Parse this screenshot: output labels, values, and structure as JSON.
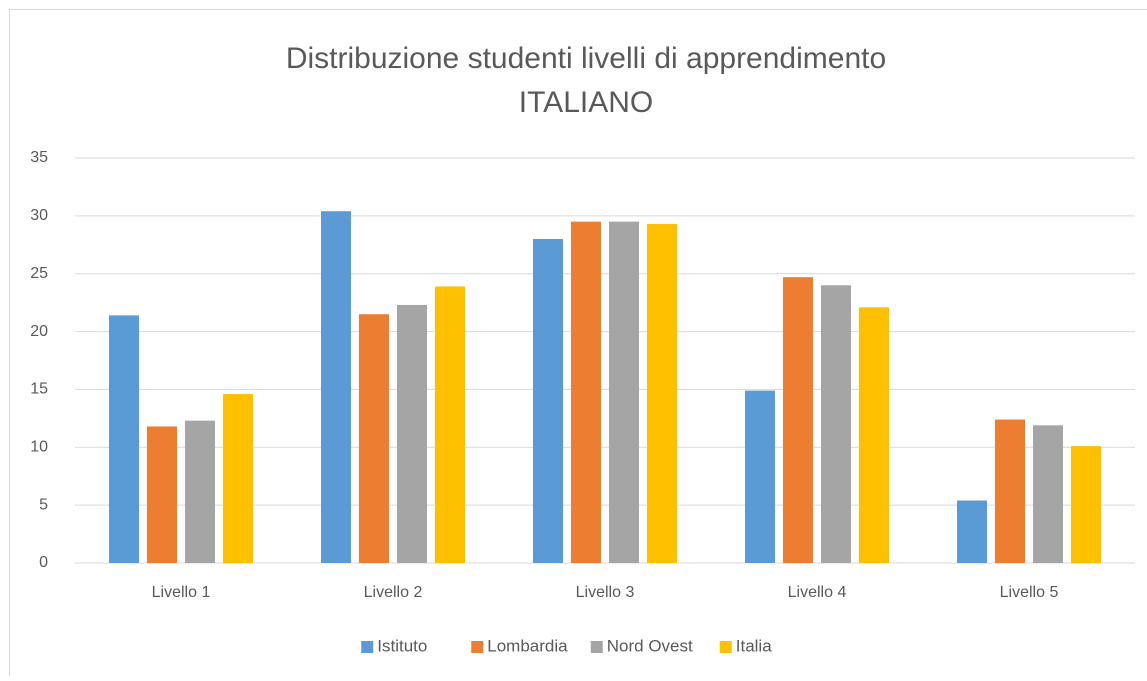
{
  "chart_data": {
    "type": "bar",
    "title": [
      "Distribuzione studenti livelli di apprendimento",
      "ITALIANO"
    ],
    "categories": [
      "Livello 1",
      "Livello 2",
      "Livello 3",
      "Livello 4",
      "Livello 5"
    ],
    "series": [
      {
        "name": "Istituto",
        "color": "#5b9bd5",
        "values": [
          21.4,
          30.4,
          28.0,
          14.9,
          5.4
        ]
      },
      {
        "name": "Lombardia",
        "color": "#ed7d31",
        "values": [
          11.8,
          21.5,
          29.5,
          24.7,
          12.4
        ]
      },
      {
        "name": "Nord Ovest",
        "color": "#a5a5a5",
        "values": [
          12.3,
          22.3,
          29.5,
          24.0,
          11.9
        ]
      },
      {
        "name": "Italia",
        "color": "#ffc000",
        "values": [
          14.6,
          23.9,
          29.3,
          22.1,
          10.1
        ]
      }
    ],
    "ylim": [
      0,
      35
    ],
    "yticks": [
      0,
      5,
      10,
      15,
      20,
      25,
      30,
      35
    ],
    "grid": true,
    "legend": "bottom"
  }
}
